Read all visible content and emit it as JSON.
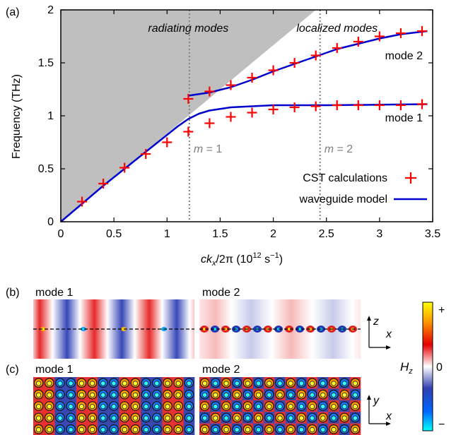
{
  "chart_data": [
    {
      "panel": "(a)",
      "type": "scatter",
      "xlabel_parts": [
        "ck",
        "x",
        "/2π (10",
        "12",
        " s",
        "−1",
        ")"
      ],
      "ylabel": "Frequency (THz)",
      "xlim": [
        0,
        3.5
      ],
      "ylim": [
        0,
        2
      ],
      "x_ticks": [
        "0",
        "0.5",
        "1",
        "1.5",
        "2",
        "2.5",
        "3",
        "3.5"
      ],
      "y_ticks": [
        "0",
        "0.5",
        "1",
        "1.5",
        "2"
      ],
      "light_line": {
        "x": [
          0,
          2.4
        ],
        "y": [
          0,
          2
        ]
      },
      "region_labels": {
        "left": "radiating modes",
        "right": "localized modes"
      },
      "vlines": [
        {
          "x": 1.21,
          "label_var": "m",
          "label_val": " = 1"
        },
        {
          "x": 2.44,
          "label_var": "m",
          "label_val": " = 2"
        }
      ],
      "series": [
        {
          "name": "CST calculations",
          "marker": "+",
          "color": "#ff0000",
          "points": [
            [
              0.2,
              0.19
            ],
            [
              0.4,
              0.36
            ],
            [
              0.6,
              0.51
            ],
            [
              0.8,
              0.64
            ],
            [
              1.0,
              0.75
            ],
            [
              1.2,
              0.85
            ],
            [
              1.4,
              0.93
            ],
            [
              1.6,
              0.99
            ],
            [
              1.8,
              1.03
            ],
            [
              2.0,
              1.06
            ],
            [
              2.2,
              1.08
            ],
            [
              2.4,
              1.09
            ],
            [
              2.6,
              1.1
            ],
            [
              2.8,
              1.1
            ],
            [
              3.0,
              1.1
            ],
            [
              3.2,
              1.1
            ],
            [
              3.4,
              1.11
            ],
            [
              1.2,
              1.16
            ],
            [
              1.4,
              1.23
            ],
            [
              1.6,
              1.29
            ],
            [
              1.8,
              1.36
            ],
            [
              2.0,
              1.43
            ],
            [
              2.2,
              1.5
            ],
            [
              2.4,
              1.57
            ],
            [
              2.6,
              1.64
            ],
            [
              2.8,
              1.7
            ],
            [
              3.0,
              1.75
            ],
            [
              3.2,
              1.78
            ],
            [
              3.4,
              1.8
            ]
          ]
        },
        {
          "name": "waveguide model",
          "color": "#0000cc",
          "curves": [
            [
              [
                0,
                0
              ],
              [
                0.2,
                0.17
              ],
              [
                0.4,
                0.34
              ],
              [
                0.6,
                0.5
              ],
              [
                0.8,
                0.66
              ],
              [
                1.0,
                0.82
              ],
              [
                1.1,
                0.9
              ],
              [
                1.2,
                0.97
              ],
              [
                1.3,
                1.02
              ],
              [
                1.4,
                1.05
              ],
              [
                1.6,
                1.08
              ],
              [
                1.8,
                1.09
              ],
              [
                2.0,
                1.1
              ],
              [
                2.5,
                1.1
              ],
              [
                3.0,
                1.105
              ],
              [
                3.45,
                1.11
              ]
            ],
            [
              [
                1.2,
                1.19
              ],
              [
                1.4,
                1.22
              ],
              [
                1.6,
                1.27
              ],
              [
                1.8,
                1.34
              ],
              [
                2.0,
                1.42
              ],
              [
                2.2,
                1.49
              ],
              [
                2.4,
                1.56
              ],
              [
                2.6,
                1.63
              ],
              [
                2.8,
                1.68
              ],
              [
                3.0,
                1.73
              ],
              [
                3.2,
                1.77
              ],
              [
                3.45,
                1.8
              ]
            ]
          ]
        }
      ],
      "curve_labels": [
        "mode 1",
        "mode 2"
      ]
    },
    {
      "panel": "(b)",
      "type": "heatmap",
      "titles": [
        "mode 1",
        "mode 2"
      ]
    },
    {
      "panel": "(c)",
      "type": "heatmap",
      "titles": [
        "mode 1",
        "mode 2"
      ]
    }
  ],
  "colorbar": {
    "label": "H",
    "label_sub": "z",
    "top": "+",
    "mid": "0",
    "bottom": "−",
    "colors": [
      "#ffff00",
      "#ff8000",
      "#e60000",
      "#ffffff",
      "#3050c0",
      "#0040ff",
      "#00ffff"
    ]
  },
  "axes_b": {
    "vertical": "z",
    "horizontal": "x"
  },
  "axes_c": {
    "vertical": "y",
    "horizontal": "x"
  },
  "colors": {
    "red": "#ff0000",
    "blue": "#0000cc",
    "gray_region": "#bfbfbf"
  }
}
